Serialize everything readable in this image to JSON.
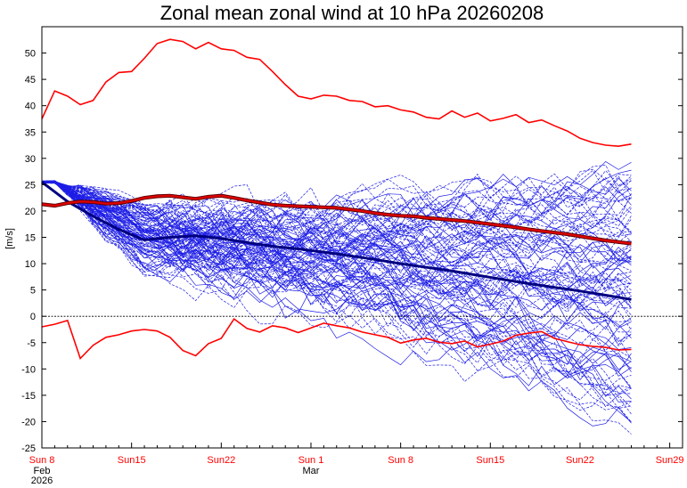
{
  "chart_data": {
    "type": "line",
    "title": "Zonal mean zonal wind at 10 hPa 20260208",
    "ylabel": "[m/s]",
    "ylim": [
      -25,
      55
    ],
    "yticks": [
      -25,
      -20,
      -15,
      -10,
      -5,
      0,
      5,
      10,
      15,
      20,
      25,
      30,
      35,
      40,
      45,
      50
    ],
    "xlim": [
      0,
      50
    ],
    "xticks": [
      {
        "day": 0,
        "label": "Sun 8",
        "sub": [
          "Feb",
          "2026"
        ]
      },
      {
        "day": 7,
        "label": "Sun15",
        "sub": []
      },
      {
        "day": 14,
        "label": "Sun22",
        "sub": []
      },
      {
        "day": 21,
        "label": "Sun 1",
        "sub": [
          "Mar"
        ]
      },
      {
        "day": 28,
        "label": "Sun 8",
        "sub": []
      },
      {
        "day": 35,
        "label": "Sun15",
        "sub": []
      },
      {
        "day": 42,
        "label": "Sun22",
        "sub": []
      },
      {
        "day": 49,
        "label": "Sun29",
        "sub": []
      }
    ],
    "zero_line": true,
    "colors": {
      "ensemble": "#1e1ee6",
      "climatology": "#ff0000",
      "mean": "#000080",
      "axis_labels": "#ff0000"
    },
    "climatology": {
      "max": {
        "x": [
          0,
          1,
          2,
          3,
          4,
          5,
          6,
          7,
          8,
          9,
          10,
          11,
          12,
          13,
          14,
          15,
          16,
          17,
          18,
          19,
          20,
          21,
          22,
          23,
          24,
          25,
          26,
          27,
          28,
          29,
          30,
          31,
          32,
          33,
          34,
          35,
          36,
          37,
          38,
          39,
          40,
          41,
          42,
          43,
          44,
          45,
          46
        ],
        "y": [
          37.5,
          42.8,
          41.8,
          40.2,
          41,
          44.5,
          46.3,
          46.5,
          49,
          51.8,
          52.6,
          52.2,
          50.8,
          52,
          50.8,
          50.5,
          49.2,
          48.8,
          46.5,
          44,
          41.8,
          41.3,
          42,
          41.8,
          41,
          40.8,
          39.8,
          40,
          39.2,
          38.8,
          37.8,
          37.5,
          39,
          37.8,
          38.6,
          37.1,
          37.6,
          38.3,
          36.8,
          37.3,
          36.2,
          35.2,
          33.8,
          33,
          32.5,
          32.3,
          32.7
        ]
      },
      "mean": {
        "x": [
          0,
          1,
          2,
          3,
          4,
          5,
          6,
          7,
          8,
          9,
          10,
          11,
          12,
          13,
          14,
          15,
          16,
          17,
          18,
          19,
          20,
          21,
          22,
          23,
          24,
          25,
          26,
          27,
          28,
          29,
          30,
          31,
          32,
          33,
          34,
          35,
          36,
          37,
          38,
          39,
          40,
          41,
          42,
          43,
          44,
          45,
          46
        ],
        "y": [
          21.3,
          21,
          21.5,
          21.8,
          21.7,
          21.4,
          21.5,
          21.9,
          22.5,
          22.8,
          22.9,
          22.6,
          22.3,
          22.7,
          22.9,
          22.5,
          22,
          21.6,
          21.2,
          21,
          20.9,
          20.8,
          20.7,
          20.6,
          20.3,
          20,
          19.6,
          19.3,
          19.1,
          19,
          18.7,
          18.5,
          18.3,
          18.1,
          17.8,
          17.5,
          17.2,
          16.9,
          16.5,
          16.2,
          15.9,
          15.6,
          15.2,
          14.8,
          14.4,
          14.1,
          13.8
        ]
      },
      "min": {
        "x": [
          0,
          1,
          2,
          3,
          4,
          5,
          6,
          7,
          8,
          9,
          10,
          11,
          12,
          13,
          14,
          15,
          16,
          17,
          18,
          19,
          20,
          21,
          22,
          23,
          24,
          25,
          26,
          27,
          28,
          29,
          30,
          31,
          32,
          33,
          34,
          35,
          36,
          37,
          38,
          39,
          40,
          41,
          42,
          43,
          44,
          45,
          46
        ],
        "y": [
          -2,
          -1.5,
          -0.8,
          -8,
          -5.5,
          -4,
          -3.5,
          -2.8,
          -2.5,
          -2.8,
          -4,
          -6.5,
          -7.5,
          -5.2,
          -4.2,
          -0.5,
          -2.3,
          -3,
          -1.8,
          -2.2,
          -3.1,
          -2.2,
          -1.3,
          -1.8,
          -2.2,
          -3,
          -3.5,
          -4,
          -5.1,
          -4.5,
          -4.2,
          -4.9,
          -5.2,
          -4.7,
          -5.8,
          -5.3,
          -4.7,
          -3.6,
          -3.2,
          -2.9,
          -4.2,
          -4.8,
          -5.4,
          -5.7,
          -5.9,
          -6.4,
          -6.3
        ]
      }
    },
    "ensemble_mean": {
      "x": [
        0,
        2,
        4,
        6,
        8,
        10,
        12,
        14,
        16,
        18,
        20,
        22,
        24,
        26,
        28,
        30,
        32,
        34,
        36,
        38,
        40,
        42,
        44,
        46
      ],
      "y": [
        25.5,
        21.8,
        19,
        16.5,
        14.5,
        15,
        15.3,
        14.8,
        14,
        13.3,
        12.8,
        12.2,
        11.5,
        10.8,
        10,
        9.3,
        8.6,
        7.8,
        7,
        6.2,
        5.5,
        4.8,
        4,
        3.2
      ]
    },
    "ensemble_seed": {
      "members": 100,
      "start": 25.5,
      "end_min": -19,
      "end_max": 27.5
    }
  }
}
